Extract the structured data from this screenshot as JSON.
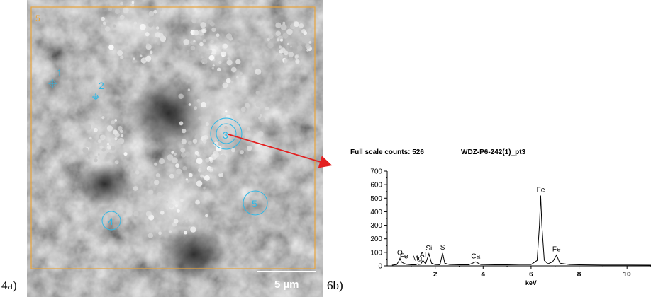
{
  "panels": {
    "left_label": "4a)",
    "right_label": "6b)"
  },
  "sem": {
    "frame_label": "5",
    "scale_bar": "5 µm",
    "point_labels": [
      "1",
      "2",
      "3",
      "4",
      "5"
    ],
    "colors": {
      "frame": "#e8a33a",
      "markers": "#2fb8e6",
      "arrow": "#e32020"
    }
  },
  "spectrum": {
    "full_scale_counts": "Full scale counts: 526",
    "sample_id": "WDZ-P6-242(1)_pt3"
  },
  "chart_data": {
    "type": "line",
    "title": "",
    "xlabel": "keV",
    "ylabel": "",
    "xlim": [
      0,
      11
    ],
    "ylim": [
      0,
      700
    ],
    "xticks": [
      "2",
      "4",
      "6",
      "8",
      "10"
    ],
    "yticks": [
      "0",
      "100",
      "200",
      "300",
      "400",
      "500",
      "600",
      "700"
    ],
    "series": [
      {
        "x": [
          0.2,
          0.4,
          0.5,
          0.53,
          0.6,
          0.7,
          0.8,
          1.0,
          1.2,
          1.25,
          1.3,
          1.4,
          1.49,
          1.6,
          1.74,
          1.85,
          2.0,
          2.2,
          2.31,
          2.4,
          2.6,
          3.0,
          3.4,
          3.69,
          3.9,
          4.5,
          5.0,
          5.5,
          6.0,
          6.25,
          6.35,
          6.4,
          6.45,
          6.55,
          6.7,
          6.9,
          7.06,
          7.2,
          7.6,
          8.0,
          9.0,
          10.0,
          11.0
        ],
        "y": [
          5,
          10,
          40,
          55,
          28,
          18,
          12,
          8,
          8,
          14,
          10,
          12,
          40,
          15,
          90,
          20,
          10,
          8,
          95,
          20,
          10,
          8,
          8,
          30,
          10,
          8,
          8,
          10,
          10,
          40,
          300,
          520,
          300,
          40,
          15,
          30,
          80,
          20,
          10,
          8,
          6,
          6,
          5
        ]
      }
    ],
    "annotations": [
      {
        "text": "O",
        "x": 0.53,
        "y": 55
      },
      {
        "text": "Fe",
        "x": 0.7,
        "y": 28
      },
      {
        "text": "Mg",
        "x": 1.25,
        "y": 14
      },
      {
        "text": "Al",
        "x": 1.49,
        "y": 40
      },
      {
        "text": "Si",
        "x": 1.74,
        "y": 90
      },
      {
        "text": "S",
        "x": 2.31,
        "y": 95
      },
      {
        "text": "Ca",
        "x": 3.69,
        "y": 30
      },
      {
        "text": "Fe",
        "x": 6.4,
        "y": 520
      },
      {
        "text": "Fe",
        "x": 7.06,
        "y": 80
      }
    ]
  }
}
